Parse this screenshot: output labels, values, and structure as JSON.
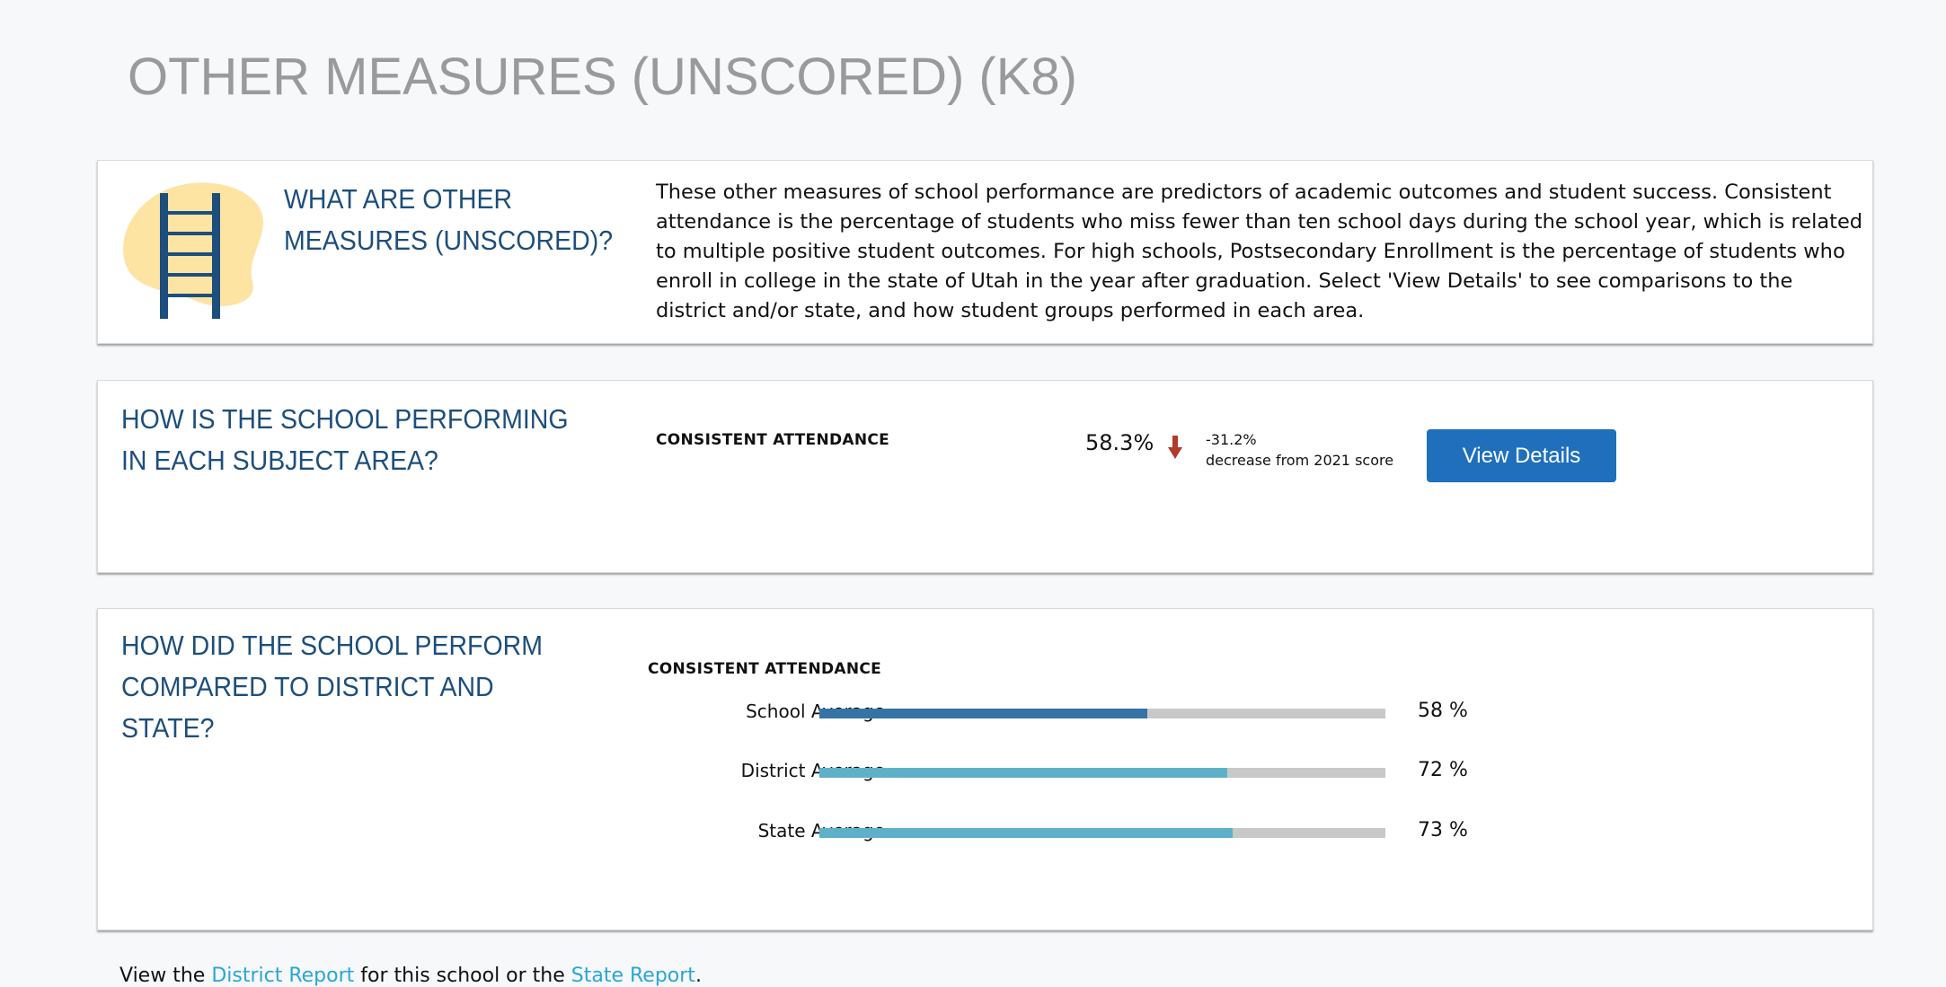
{
  "page": {
    "title": "OTHER MEASURES (UNSCORED) (K8)"
  },
  "intro": {
    "heading": "WHAT ARE OTHER MEASURES (UNSCORED)?",
    "text": "These other measures of school performance are predictors of academic outcomes and student success. Consistent attendance is the percentage of students who miss fewer than ten school days during the school year, which is related to multiple positive student outcomes. For high schools, Postsecondary Enrollment is the percentage of students who enroll in college in the state of Utah in the year after graduation. Select 'View Details' to see comparisons to the district and/or state, and how student groups performed in each area.",
    "icon": "ladder-icon"
  },
  "performance": {
    "heading": "HOW IS THE SCHOOL PERFORMING IN EACH SUBJECT AREA?",
    "measure_label": "CONSISTENT ATTENDANCE",
    "value": "58.3%",
    "change_pct": "-31.2%",
    "change_text": "decrease from 2021 score",
    "change_icon": "arrow-down-icon",
    "button_label": "View Details"
  },
  "comparison": {
    "heading": "HOW DID THE SCHOOL PERFORM COMPARED TO DISTRICT AND STATE?",
    "measure_label": "CONSISTENT ATTENDANCE",
    "rows": [
      {
        "label": "School Average",
        "value": 58,
        "display": "58 %",
        "color": "#3573a6"
      },
      {
        "label": "District Average",
        "value": 72,
        "display": "72 %",
        "color": "#5eb0c8"
      },
      {
        "label": "State Average",
        "value": 73,
        "display": "73 %",
        "color": "#5eb0c8"
      }
    ]
  },
  "footer": {
    "prefix": "View the",
    "district_link": "District Report",
    "middle": "for this school or the",
    "state_link": "State Report",
    "suffix": "."
  },
  "colors": {
    "heading": "#1d4e7c",
    "button": "#1f6fbd",
    "link": "#2aa6d6",
    "arrow": "#b23a2a",
    "bar_track": "#c8c8c8"
  }
}
